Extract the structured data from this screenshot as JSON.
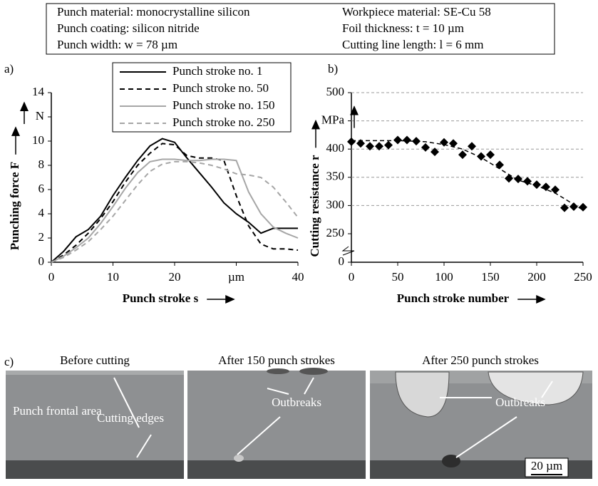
{
  "info_box": {
    "left": [
      "Punch material: monocrystalline silicon",
      "Punch coating: silicon nitride",
      "Punch width: w = 78 µm"
    ],
    "right": [
      "Workpiece material: SE-Cu 58",
      "Foil thickness: t = 10 µm",
      "Cutting line length: l = 6 mm"
    ]
  },
  "chart_data": [
    {
      "type": "line",
      "panel_label": "a)",
      "x_label": "Punch stroke s",
      "y_label": "Punching force F",
      "x": [
        0,
        2,
        4,
        6,
        8,
        10,
        12,
        14,
        16,
        18,
        20,
        22,
        24,
        26,
        28,
        30,
        32,
        34,
        36,
        38,
        40
      ],
      "xlim": [
        0,
        40
      ],
      "xticks": [
        0,
        10,
        20,
        {
          "value": 30,
          "label": "µm"
        },
        40
      ],
      "ylim": [
        0,
        14
      ],
      "yticks": [
        0,
        2,
        4,
        6,
        8,
        10,
        {
          "value": 12,
          "label": "N"
        },
        14
      ],
      "grid": false,
      "series": [
        {
          "name": "Punch stroke no. 1",
          "color": "#000000",
          "dash": false,
          "values": [
            0,
            0.9,
            2.1,
            2.7,
            3.8,
            5.5,
            7.0,
            8.4,
            9.6,
            10.2,
            9.9,
            8.6,
            7.4,
            6.2,
            4.9,
            4.0,
            3.3,
            2.4,
            2.8,
            2.8,
            2.8
          ]
        },
        {
          "name": "Punch stroke no. 50",
          "color": "#000000",
          "dash": true,
          "values": [
            0,
            0.6,
            1.4,
            2.4,
            3.6,
            5.0,
            6.6,
            8.0,
            9.0,
            9.8,
            9.7,
            8.8,
            8.6,
            8.6,
            8.4,
            5.5,
            3.0,
            1.5,
            1.1,
            1.1,
            1.0
          ]
        },
        {
          "name": "Punch stroke no. 150",
          "color": "#a6a6a6",
          "dash": false,
          "values": [
            0,
            0.5,
            1.2,
            2.0,
            3.2,
            4.6,
            6.1,
            7.4,
            8.3,
            8.5,
            8.5,
            8.4,
            8.4,
            8.5,
            8.5,
            8.4,
            5.8,
            4.0,
            2.9,
            2.4,
            2.0
          ]
        },
        {
          "name": "Punch stroke no. 250",
          "color": "#a6a6a6",
          "dash": true,
          "values": [
            0,
            0.4,
            1.0,
            1.7,
            2.7,
            3.8,
            5.1,
            6.4,
            7.5,
            8.1,
            8.3,
            8.3,
            8.2,
            8.0,
            7.7,
            7.3,
            7.2,
            7.0,
            6.2,
            5.0,
            3.7
          ]
        }
      ]
    },
    {
      "type": "scatter",
      "panel_label": "b)",
      "x_label": "Punch stroke number",
      "y_label": "Cutting resistance r",
      "x": [
        0,
        10,
        20,
        30,
        40,
        50,
        60,
        70,
        80,
        90,
        100,
        110,
        120,
        130,
        140,
        150,
        160,
        170,
        180,
        190,
        200,
        210,
        220,
        230,
        240,
        250
      ],
      "values": [
        413,
        410,
        405,
        405,
        407,
        416,
        416,
        414,
        403,
        395,
        412,
        410,
        390,
        405,
        387,
        390,
        372,
        348,
        347,
        343,
        337,
        333,
        328,
        296,
        298,
        297
      ],
      "color": "#000000",
      "trend": {
        "x": [
          0,
          50,
          80,
          100,
          120,
          140,
          160,
          180,
          200,
          220,
          240,
          250
        ],
        "values": [
          415,
          415,
          413,
          408,
          400,
          385,
          365,
          345,
          335,
          322,
          302,
          292
        ]
      },
      "xlim": [
        0,
        250
      ],
      "xticks": [
        0,
        50,
        100,
        150,
        200,
        250
      ],
      "ylim": [
        0,
        500
      ],
      "axis_break": [
        0,
        250
      ],
      "yticks": [
        0,
        250,
        300,
        350,
        400,
        {
          "value": 450,
          "label": "MPa"
        },
        500
      ],
      "grid": true
    }
  ],
  "photos": {
    "panel_label": "c)",
    "panels": [
      {
        "title": "Before cutting",
        "annotations": [
          "Punch frontal area",
          "Cutting edges"
        ]
      },
      {
        "title": "After 150 punch strokes",
        "annotations": [
          "Outbreaks"
        ]
      },
      {
        "title": "After 250 punch strokes",
        "annotations": [
          "Outbreaks"
        ],
        "scale_bar": "20 µm"
      }
    ]
  }
}
